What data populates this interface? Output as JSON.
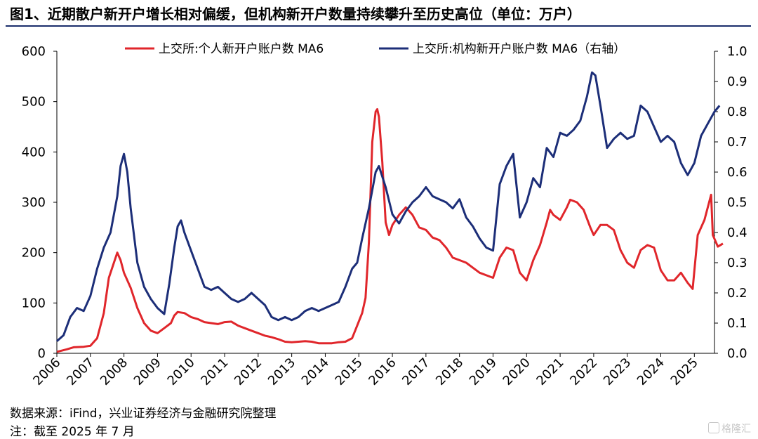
{
  "title": "图1、近期散户新开户增长相对偏缓，但机构新开户数量持续攀升至历史高位（单位：万户）",
  "source": "数据来源：iFind，兴业证券经济与金融研究院整理",
  "note": "注：截至 2025 年 7 月",
  "watermark": "格隆汇",
  "chart_data": {
    "type": "line",
    "title": "图1、近期散户新开户增长相对偏缓，但机构新开户数量持续攀升至历史高位（单位：万户）",
    "x_ticks": [
      "2006",
      "2007",
      "2008",
      "2009",
      "2010",
      "2011",
      "2012",
      "2013",
      "2014",
      "2015",
      "2016",
      "2017",
      "2018",
      "2019",
      "2020",
      "2021",
      "2022",
      "2023",
      "2024",
      "2025"
    ],
    "ylim_left": [
      0,
      600
    ],
    "yticks_left": [
      "0",
      "100",
      "200",
      "300",
      "400",
      "500",
      "600"
    ],
    "ylim_right": [
      0,
      1.0
    ],
    "yticks_right": [
      "0.0",
      "0.1",
      "0.2",
      "0.3",
      "0.4",
      "0.5",
      "0.6",
      "0.7",
      "0.8",
      "0.9",
      "1.0"
    ],
    "legend_position": "top",
    "grid": false,
    "series": [
      {
        "name": "上交所:个人新开户账户数 MA6",
        "axis": "left",
        "color": "#e0262b",
        "points": [
          [
            2006.0,
            3
          ],
          [
            2006.3,
            8
          ],
          [
            2006.5,
            12
          ],
          [
            2006.8,
            13
          ],
          [
            2007.0,
            15
          ],
          [
            2007.2,
            30
          ],
          [
            2007.4,
            80
          ],
          [
            2007.55,
            150
          ],
          [
            2007.7,
            180
          ],
          [
            2007.8,
            200
          ],
          [
            2007.9,
            185
          ],
          [
            2008.0,
            160
          ],
          [
            2008.2,
            130
          ],
          [
            2008.4,
            90
          ],
          [
            2008.6,
            60
          ],
          [
            2008.8,
            45
          ],
          [
            2009.0,
            40
          ],
          [
            2009.2,
            50
          ],
          [
            2009.4,
            60
          ],
          [
            2009.5,
            75
          ],
          [
            2009.6,
            82
          ],
          [
            2009.8,
            80
          ],
          [
            2010.0,
            72
          ],
          [
            2010.2,
            68
          ],
          [
            2010.4,
            62
          ],
          [
            2010.6,
            60
          ],
          [
            2010.8,
            58
          ],
          [
            2011.0,
            62
          ],
          [
            2011.2,
            63
          ],
          [
            2011.4,
            55
          ],
          [
            2011.6,
            50
          ],
          [
            2011.8,
            45
          ],
          [
            2012.0,
            40
          ],
          [
            2012.2,
            35
          ],
          [
            2012.4,
            32
          ],
          [
            2012.6,
            28
          ],
          [
            2012.8,
            23
          ],
          [
            2013.0,
            22
          ],
          [
            2013.2,
            23
          ],
          [
            2013.4,
            24
          ],
          [
            2013.6,
            23
          ],
          [
            2013.8,
            20
          ],
          [
            2014.0,
            20
          ],
          [
            2014.2,
            20
          ],
          [
            2014.4,
            22
          ],
          [
            2014.6,
            23
          ],
          [
            2014.8,
            30
          ],
          [
            2014.95,
            55
          ],
          [
            2015.1,
            80
          ],
          [
            2015.2,
            110
          ],
          [
            2015.3,
            220
          ],
          [
            2015.4,
            420
          ],
          [
            2015.5,
            480
          ],
          [
            2015.55,
            485
          ],
          [
            2015.6,
            470
          ],
          [
            2015.7,
            380
          ],
          [
            2015.8,
            260
          ],
          [
            2015.9,
            235
          ],
          [
            2016.0,
            255
          ],
          [
            2016.2,
            275
          ],
          [
            2016.4,
            290
          ],
          [
            2016.6,
            275
          ],
          [
            2016.8,
            250
          ],
          [
            2017.0,
            245
          ],
          [
            2017.2,
            230
          ],
          [
            2017.4,
            225
          ],
          [
            2017.6,
            210
          ],
          [
            2017.8,
            190
          ],
          [
            2018.0,
            185
          ],
          [
            2018.2,
            180
          ],
          [
            2018.4,
            170
          ],
          [
            2018.6,
            160
          ],
          [
            2018.8,
            155
          ],
          [
            2019.0,
            150
          ],
          [
            2019.2,
            190
          ],
          [
            2019.4,
            210
          ],
          [
            2019.6,
            205
          ],
          [
            2019.8,
            160
          ],
          [
            2020.0,
            145
          ],
          [
            2020.2,
            185
          ],
          [
            2020.4,
            215
          ],
          [
            2020.6,
            260
          ],
          [
            2020.7,
            285
          ],
          [
            2020.8,
            275
          ],
          [
            2021.0,
            265
          ],
          [
            2021.2,
            290
          ],
          [
            2021.3,
            305
          ],
          [
            2021.5,
            300
          ],
          [
            2021.7,
            285
          ],
          [
            2021.9,
            250
          ],
          [
            2022.0,
            235
          ],
          [
            2022.2,
            255
          ],
          [
            2022.4,
            255
          ],
          [
            2022.6,
            245
          ],
          [
            2022.8,
            205
          ],
          [
            2023.0,
            180
          ],
          [
            2023.2,
            170
          ],
          [
            2023.4,
            205
          ],
          [
            2023.6,
            215
          ],
          [
            2023.8,
            210
          ],
          [
            2024.0,
            165
          ],
          [
            2024.2,
            145
          ],
          [
            2024.4,
            145
          ],
          [
            2024.6,
            160
          ],
          [
            2024.8,
            140
          ],
          [
            2024.95,
            128
          ],
          [
            2025.1,
            235
          ],
          [
            2025.3,
            265
          ],
          [
            2025.5,
            315
          ],
          [
            2025.55,
            235
          ],
          [
            2025.7,
            212
          ],
          [
            2025.85,
            218
          ]
        ]
      },
      {
        "name": "上交所:机构新开户账户数 MA6（右轴）",
        "axis": "right",
        "color": "#1c2e78",
        "points": [
          [
            2006.0,
            0.04
          ],
          [
            2006.2,
            0.06
          ],
          [
            2006.4,
            0.12
          ],
          [
            2006.6,
            0.15
          ],
          [
            2006.8,
            0.14
          ],
          [
            2007.0,
            0.19
          ],
          [
            2007.2,
            0.28
          ],
          [
            2007.4,
            0.35
          ],
          [
            2007.6,
            0.4
          ],
          [
            2007.8,
            0.52
          ],
          [
            2007.9,
            0.62
          ],
          [
            2008.0,
            0.66
          ],
          [
            2008.1,
            0.6
          ],
          [
            2008.2,
            0.48
          ],
          [
            2008.4,
            0.3
          ],
          [
            2008.6,
            0.22
          ],
          [
            2008.8,
            0.18
          ],
          [
            2009.0,
            0.15
          ],
          [
            2009.2,
            0.13
          ],
          [
            2009.35,
            0.23
          ],
          [
            2009.5,
            0.35
          ],
          [
            2009.6,
            0.42
          ],
          [
            2009.7,
            0.44
          ],
          [
            2009.8,
            0.4
          ],
          [
            2010.0,
            0.34
          ],
          [
            2010.2,
            0.28
          ],
          [
            2010.4,
            0.22
          ],
          [
            2010.6,
            0.21
          ],
          [
            2010.8,
            0.22
          ],
          [
            2011.0,
            0.2
          ],
          [
            2011.2,
            0.18
          ],
          [
            2011.4,
            0.17
          ],
          [
            2011.6,
            0.18
          ],
          [
            2011.8,
            0.2
          ],
          [
            2012.0,
            0.18
          ],
          [
            2012.2,
            0.16
          ],
          [
            2012.4,
            0.12
          ],
          [
            2012.6,
            0.11
          ],
          [
            2012.8,
            0.12
          ],
          [
            2013.0,
            0.11
          ],
          [
            2013.2,
            0.12
          ],
          [
            2013.4,
            0.14
          ],
          [
            2013.6,
            0.15
          ],
          [
            2013.8,
            0.14
          ],
          [
            2014.0,
            0.15
          ],
          [
            2014.2,
            0.16
          ],
          [
            2014.4,
            0.17
          ],
          [
            2014.6,
            0.22
          ],
          [
            2014.8,
            0.28
          ],
          [
            2014.95,
            0.3
          ],
          [
            2015.1,
            0.38
          ],
          [
            2015.3,
            0.48
          ],
          [
            2015.5,
            0.6
          ],
          [
            2015.6,
            0.62
          ],
          [
            2015.8,
            0.55
          ],
          [
            2016.0,
            0.46
          ],
          [
            2016.2,
            0.43
          ],
          [
            2016.4,
            0.47
          ],
          [
            2016.6,
            0.5
          ],
          [
            2016.8,
            0.52
          ],
          [
            2017.0,
            0.55
          ],
          [
            2017.2,
            0.52
          ],
          [
            2017.4,
            0.51
          ],
          [
            2017.6,
            0.5
          ],
          [
            2017.8,
            0.48
          ],
          [
            2018.0,
            0.51
          ],
          [
            2018.2,
            0.45
          ],
          [
            2018.4,
            0.42
          ],
          [
            2018.6,
            0.38
          ],
          [
            2018.8,
            0.35
          ],
          [
            2019.0,
            0.34
          ],
          [
            2019.2,
            0.56
          ],
          [
            2019.4,
            0.62
          ],
          [
            2019.6,
            0.66
          ],
          [
            2019.8,
            0.45
          ],
          [
            2020.0,
            0.5
          ],
          [
            2020.2,
            0.58
          ],
          [
            2020.4,
            0.55
          ],
          [
            2020.6,
            0.68
          ],
          [
            2020.8,
            0.65
          ],
          [
            2021.0,
            0.73
          ],
          [
            2021.2,
            0.72
          ],
          [
            2021.4,
            0.74
          ],
          [
            2021.6,
            0.77
          ],
          [
            2021.8,
            0.85
          ],
          [
            2021.95,
            0.93
          ],
          [
            2022.05,
            0.92
          ],
          [
            2022.2,
            0.82
          ],
          [
            2022.4,
            0.68
          ],
          [
            2022.6,
            0.71
          ],
          [
            2022.8,
            0.73
          ],
          [
            2023.0,
            0.71
          ],
          [
            2023.2,
            0.72
          ],
          [
            2023.4,
            0.82
          ],
          [
            2023.6,
            0.8
          ],
          [
            2023.8,
            0.75
          ],
          [
            2024.0,
            0.7
          ],
          [
            2024.2,
            0.72
          ],
          [
            2024.4,
            0.7
          ],
          [
            2024.6,
            0.63
          ],
          [
            2024.8,
            0.59
          ],
          [
            2025.0,
            0.63
          ],
          [
            2025.2,
            0.72
          ],
          [
            2025.4,
            0.76
          ],
          [
            2025.6,
            0.8
          ],
          [
            2025.75,
            0.82
          ]
        ]
      }
    ]
  }
}
